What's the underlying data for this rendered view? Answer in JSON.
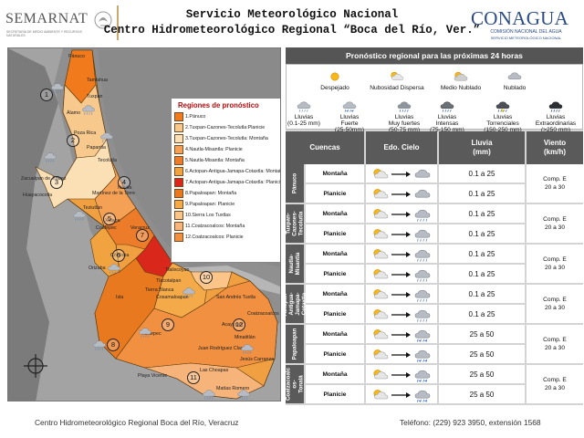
{
  "header": {
    "logo_left_word": "SEMARNAT",
    "logo_left_sub": "SECRETARÍA DE MEDIO AMBIENTE Y RECURSOS NATURALES",
    "title_line1": "Servicio Meteorológico Nacional",
    "title_line2": "Centro Hidrometeorológico Regional “Boca del Río, Ver.”",
    "logo_right_word": "CONAGUA",
    "logo_right_sub1": "COMISIÓN NACIONAL DEL AGUA",
    "logo_right_sub2": "SERVICIO METEOROLÓGICO NACIONAL"
  },
  "map": {
    "legend_title": "Regiones de pronóstico",
    "regions": [
      {
        "label": "1.Pánuco",
        "color": "#f07a1c"
      },
      {
        "label": "2.Tuxpan-Cazones-Tecolutla:Planicie",
        "color": "#f8c98c"
      },
      {
        "label": "3.Tuxpan-Cazones-Tecolutla: Montaña",
        "color": "#fbe0b5"
      },
      {
        "label": "4.Nautla-Misantla: Planicie",
        "color": "#f4a055"
      },
      {
        "label": "5.Nautla-Misantla: Montaña",
        "color": "#ec7b2a"
      },
      {
        "label": "6.Actopan-Antigua-Jamapa-Cotaxtla: Montaña",
        "color": "#f0a33e"
      },
      {
        "label": "7.Actopan-Antigua-Jamapa-Cotaxtla: Planicie",
        "color": "#d9271c"
      },
      {
        "label": "8.Papaloapan: Montaña",
        "color": "#e8791e"
      },
      {
        "label": "9.Papaloapan: Planicie",
        "color": "#f5aa4a"
      },
      {
        "label": "10.Sierra Los Tuxtlas",
        "color": "#fbc58a"
      },
      {
        "label": "11.Coatzacoalcos: Montaña",
        "color": "#f7b47a"
      },
      {
        "label": "12.Coatzacoalcos: Planicie",
        "color": "#f09040"
      }
    ],
    "towns": [
      "Pánuco",
      "Tamiahua",
      "Tuxpan",
      "Álamo",
      "Poza Rica",
      "Papantla",
      "Tecolutla",
      "Zacualpan de Juárez",
      "Huayacocotla",
      "Martínez de la Torre",
      "Nautla",
      "Teziutlán",
      "Xalapa",
      "Veracruz",
      "Coatepec",
      "Orizaba",
      "Córdoba",
      "Tlacotalpan",
      "Tierra Blanca",
      "Cosamaloapan",
      "Tuxtepec",
      "Acayucan",
      "San Andrés Tuxtla",
      "Coatzacoalcos",
      "Minatitlán",
      "Las Choapas",
      "Isla",
      "Playa Vicente",
      "Tlalixcoyan",
      "Juan Rodríguez Clara",
      "Matías Romero",
      "Jesús Carranza"
    ],
    "region_numbers": [
      "1",
      "2",
      "3",
      "4",
      "5",
      "6",
      "7",
      "8",
      "9",
      "10",
      "11",
      "12"
    ]
  },
  "forecast": {
    "title": "Pronóstico regional para las próximas 24 horas",
    "legend": [
      {
        "label": "Despejado",
        "icon": "sun-icon"
      },
      {
        "label": "Nubosidad  Dispersa",
        "icon": "sun-cloud-icon"
      },
      {
        "label": "Medio  Nublado",
        "icon": "partly-cloudy-icon"
      },
      {
        "label": "Nublado",
        "icon": "cloud-icon"
      },
      {
        "label": "Lluvias\n(0.1-25 mm)",
        "icon": "light-rain-icon"
      },
      {
        "label": "Lluvias\nFuerte\n(25-50mm)",
        "icon": "rain-icon"
      },
      {
        "label": "Lluvias\nMuy fuertes\n(50-75 mm)",
        "icon": "heavy-rain-icon"
      },
      {
        "label": "Lluvias\nIntensas\n(75-150 mm)",
        "icon": "intense-rain-icon"
      },
      {
        "label": "Lluvias\nTorrenciales\n(150-250 mm)",
        "icon": "torrential-rain-icon"
      },
      {
        "label": "Lluvias\nExtraordinarias\n(>250 mm)",
        "icon": "extraordinary-rain-icon"
      }
    ],
    "columns": {
      "basins": "Cuencas",
      "sky": "Edo. Cielo",
      "rain": "Lluvia\n(mm)",
      "wind": "Viento\n(km/h)"
    },
    "basins": [
      {
        "name": "Pánuco",
        "wind": "Comp. E\n20 a 30",
        "rows": [
          {
            "terrain": "Montaña",
            "rain": "0.1 a 25",
            "from": "sun-cloud",
            "to": "cloud"
          },
          {
            "terrain": "Planicie",
            "rain": "0.1 a 25",
            "from": "sun-cloud",
            "to": "cloud"
          }
        ]
      },
      {
        "name": "Tuxpan-\nCazones-\nTecolutla",
        "wind": "Comp. E\n20 a 30",
        "rows": [
          {
            "terrain": "Montaña",
            "rain": "0.1 a 25",
            "from": "sun-cloud",
            "to": "light-rain"
          },
          {
            "terrain": "Planicie",
            "rain": "0.1 a 25",
            "from": "sun-cloud",
            "to": "light-rain"
          }
        ]
      },
      {
        "name": "Nautla-\nMisantla",
        "wind": "Comp. E\n20 a 30",
        "rows": [
          {
            "terrain": "Montaña",
            "rain": "0.1 a 25",
            "from": "sun-cloud",
            "to": "light-rain"
          },
          {
            "terrain": "Planicie",
            "rain": "0.1 a 25",
            "from": "sun-cloud",
            "to": "light-rain"
          }
        ]
      },
      {
        "name": "Actopan-\nAntigua-\nJamapa-\nCotaxtla",
        "wind": "Comp. E\n20 a 30",
        "rows": [
          {
            "terrain": "Montaña",
            "rain": "0.1 a 25",
            "from": "sun-cloud",
            "to": "light-rain"
          },
          {
            "terrain": "Planicie",
            "rain": "0.1 a 25",
            "from": "sun-cloud",
            "to": "light-rain"
          }
        ]
      },
      {
        "name": "Papaloapan",
        "wind": "Comp. E\n20 a 30",
        "rows": [
          {
            "terrain": "Montaña",
            "rain": "25 a 50",
            "from": "sun-cloud",
            "to": "rain"
          },
          {
            "terrain": "Planicie",
            "rain": "25 a 50",
            "from": "sun-cloud",
            "to": "rain"
          }
        ]
      },
      {
        "name": "Coatzacoalc\nos-\nTonalá",
        "wind": "Comp. E\n20 a 30",
        "rows": [
          {
            "terrain": "Montaña",
            "rain": "25 a 50",
            "from": "sun-cloud",
            "to": "rain"
          },
          {
            "terrain": "Planicie",
            "rain": "25 a 50",
            "from": "sun-cloud",
            "to": "rain"
          }
        ]
      }
    ]
  },
  "footer": {
    "left": "Centro Hidrometeorológico Regional Boca del Río, Veracruz",
    "right": "Teléfono: (229) 923 3950, extensión 1568"
  }
}
